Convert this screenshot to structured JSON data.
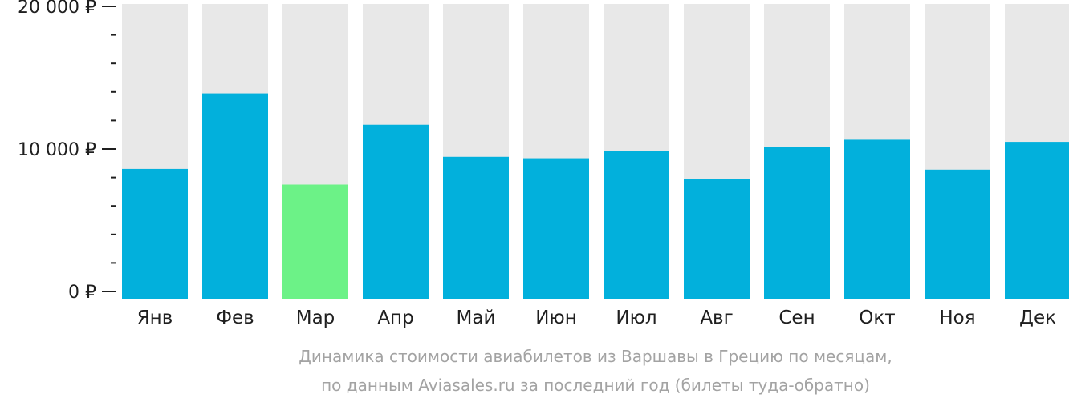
{
  "chart_data": {
    "type": "bar",
    "categories": [
      "Янв",
      "Фев",
      "Мар",
      "Апр",
      "Май",
      "Июн",
      "Июл",
      "Авг",
      "Сен",
      "Окт",
      "Ноя",
      "Дек"
    ],
    "values": [
      8600,
      13900,
      7500,
      11700,
      9450,
      9350,
      9850,
      7900,
      10150,
      10650,
      8550,
      10500
    ],
    "highlight_index": 2,
    "ylim": [
      0,
      20000
    ],
    "yticks": [
      {
        "value": 0,
        "label": "0 ₽"
      },
      {
        "value": 10000,
        "label": "10 000 ₽"
      },
      {
        "value": 20000,
        "label": "20 000 ₽"
      }
    ],
    "minor_tick_step": 2000,
    "caption": [
      "Динамика стоимости авиабилетов из Варшавы в Грецию по месяцам,",
      "по данным Aviasales.ru за последний год (билеты туда-обратно)"
    ],
    "colors": {
      "bar": "#02b0dc",
      "highlight": "#6cf287",
      "background_bar": "#e8e8e8",
      "axis": "#1f1f1f",
      "caption": "#a3a3a3"
    }
  }
}
